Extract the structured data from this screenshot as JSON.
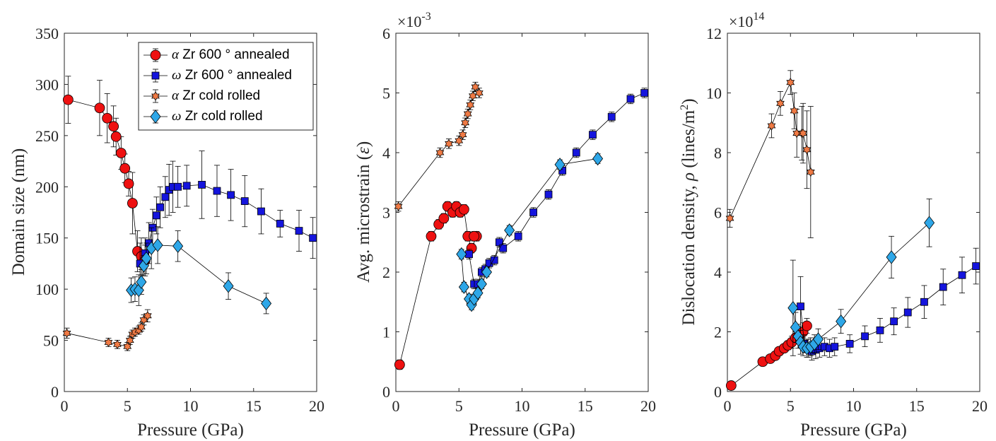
{
  "chart_data": [
    {
      "type": "scatter",
      "title": "",
      "xlabel": "Pressure (GPa)",
      "ylabel": "Domain size (nm)",
      "xlim": [
        0,
        20
      ],
      "ylim": [
        0,
        350
      ],
      "xticks": [
        0,
        5,
        10,
        15,
        20
      ],
      "yticks": [
        0,
        50,
        100,
        150,
        200,
        250,
        300,
        350
      ],
      "exponent": "",
      "legend_position": "top-right",
      "legend": [
        {
          "greek": "α",
          "text": " Zr 600 ° annealed"
        },
        {
          "greek": "ω",
          "text": " Zr 600 ° annealed"
        },
        {
          "greek": "α",
          "text": " Zr cold rolled"
        },
        {
          "greek": "ω",
          "text": " Zr cold rolled"
        }
      ],
      "series": [
        {
          "name": "α Zr 600 ° annealed",
          "marker": "circle",
          "color": "#ee1111",
          "x": [
            0.3,
            2.8,
            3.4,
            3.9,
            4.1,
            4.5,
            4.8,
            5.1,
            5.4,
            5.8,
            6.1,
            6.4
          ],
          "y": [
            285,
            277,
            267,
            259,
            249,
            233,
            218,
            203,
            184,
            137,
            132,
            128
          ],
          "err": [
            23,
            27,
            24,
            20,
            18,
            16,
            14,
            12,
            30,
            20,
            18,
            15
          ]
        },
        {
          "name": "ω Zr 600 ° annealed",
          "marker": "square",
          "color": "#1515dd",
          "x": [
            6.0,
            6.4,
            6.7,
            7.0,
            7.3,
            7.6,
            8.0,
            8.3,
            8.6,
            9.0,
            9.7,
            10.9,
            12.1,
            13.2,
            14.3,
            15.6,
            17.1,
            18.6,
            19.7
          ],
          "y": [
            125,
            135,
            145,
            160,
            172,
            180,
            190,
            197,
            200,
            200,
            201,
            202,
            196,
            192,
            186,
            176,
            164,
            157,
            150
          ],
          "err": [
            20,
            15,
            20,
            18,
            18,
            20,
            20,
            25,
            25,
            20,
            20,
            33,
            25,
            25,
            25,
            22,
            13,
            20,
            20
          ]
        },
        {
          "name": "α Zr cold rolled",
          "marker": "hexagram",
          "color": "#f07a44",
          "x": [
            0.2,
            3.5,
            4.2,
            5.0,
            5.2,
            5.4,
            5.6,
            5.9,
            6.1,
            6.3,
            6.6
          ],
          "y": [
            57,
            48,
            46,
            44,
            50,
            56,
            58,
            60,
            63,
            70,
            74
          ],
          "err": [
            5,
            4,
            4,
            4,
            4,
            4,
            4,
            4,
            4,
            5,
            6
          ]
        },
        {
          "name": "ω Zr cold rolled",
          "marker": "diamond",
          "color": "#2ea7e8",
          "x": [
            5.3,
            5.6,
            5.9,
            6.1,
            6.3,
            6.5,
            6.9,
            7.4,
            9.0,
            13.0,
            16.0
          ],
          "y": [
            99,
            100,
            99,
            107,
            123,
            130,
            140,
            143,
            142,
            103,
            86
          ],
          "err": [
            12,
            12,
            15,
            12,
            10,
            15,
            20,
            18,
            15,
            13,
            10
          ]
        }
      ]
    },
    {
      "type": "scatter",
      "title": "",
      "xlabel": "Pressure (GPa)",
      "ylabel": "Avg. microstrain (ε)",
      "ylabel_main": "Avg.  microstrain  (",
      "ylabel_sym": "ε",
      "ylabel_end": ")",
      "xlim": [
        0,
        20
      ],
      "ylim": [
        0,
        6
      ],
      "xticks": [
        0,
        5,
        10,
        15,
        20
      ],
      "yticks": [
        0,
        1,
        2,
        3,
        4,
        5,
        6
      ],
      "exponent_base": "×10",
      "exponent_power": "-3",
      "series": [
        {
          "name": "α Zr 600 ° annealed",
          "marker": "circle",
          "color": "#ee1111",
          "x": [
            0.3,
            2.8,
            3.4,
            3.8,
            4.1,
            4.5,
            4.8,
            5.1,
            5.4,
            5.7,
            6.0,
            6.4,
            6.2
          ],
          "y": [
            0.45,
            2.6,
            2.8,
            2.9,
            3.1,
            3.0,
            3.1,
            3.0,
            3.05,
            2.6,
            2.4,
            2.6,
            2.6
          ],
          "err": [
            0.08,
            0.08,
            0.08,
            0.08,
            0.08,
            0.08,
            0.08,
            0.08,
            0.08,
            0.08,
            0.08,
            0.08,
            0.08
          ]
        },
        {
          "name": "ω Zr 600 ° annealed",
          "marker": "square",
          "color": "#1515dd",
          "x": [
            5.8,
            6.2,
            6.5,
            6.8,
            7.1,
            7.4,
            7.8,
            8.2,
            8.5,
            9.7,
            10.9,
            12.1,
            13.2,
            14.3,
            15.6,
            17.1,
            18.6,
            19.7
          ],
          "y": [
            2.3,
            1.8,
            1.8,
            2.0,
            2.05,
            2.15,
            2.2,
            2.5,
            2.4,
            2.6,
            3.0,
            3.3,
            3.7,
            4.0,
            4.3,
            4.6,
            4.9,
            5.0
          ],
          "err": [
            0.08,
            0.08,
            0.08,
            0.08,
            0.08,
            0.08,
            0.08,
            0.08,
            0.08,
            0.08,
            0.08,
            0.08,
            0.08,
            0.08,
            0.08,
            0.08,
            0.08,
            0.08
          ]
        },
        {
          "name": "α Zr cold rolled",
          "marker": "hexagram",
          "color": "#f07a44",
          "x": [
            0.2,
            3.5,
            4.2,
            5.0,
            5.3,
            5.5,
            5.7,
            5.9,
            6.1,
            6.3,
            6.6
          ],
          "y": [
            3.1,
            4.0,
            4.15,
            4.2,
            4.3,
            4.5,
            4.65,
            4.8,
            4.95,
            5.1,
            5.0
          ],
          "err": [
            0.08,
            0.08,
            0.08,
            0.08,
            0.08,
            0.08,
            0.08,
            0.08,
            0.08,
            0.08,
            0.08
          ]
        },
        {
          "name": "ω Zr cold rolled",
          "marker": "diamond",
          "color": "#2ea7e8",
          "x": [
            5.2,
            5.4,
            5.8,
            6.0,
            6.2,
            6.5,
            6.8,
            7.2,
            9.0,
            13.0,
            16.0
          ],
          "y": [
            2.3,
            1.75,
            1.55,
            1.45,
            1.55,
            1.65,
            1.8,
            2.0,
            2.7,
            3.8,
            3.9
          ],
          "err": [
            0.08,
            0.08,
            0.08,
            0.08,
            0.08,
            0.08,
            0.08,
            0.08,
            0.08,
            0.08,
            0.08
          ]
        }
      ]
    },
    {
      "type": "scatter",
      "title": "",
      "xlabel": "Pressure (GPa)",
      "ylabel": "Dislocation density, ρ (lines/m²)",
      "ylabel_main": "Dislocation  density,  ",
      "ylabel_sym": "ρ",
      "ylabel_end": " (lines/m",
      "ylabel_sup": "2",
      "ylabel_close": ")",
      "xlim": [
        0,
        20
      ],
      "ylim": [
        0,
        12
      ],
      "xticks": [
        0,
        5,
        10,
        15,
        20
      ],
      "yticks": [
        0,
        2,
        4,
        6,
        8,
        10,
        12
      ],
      "exponent_base": "×10",
      "exponent_power": "14",
      "series": [
        {
          "name": "α Zr 600 ° annealed",
          "marker": "circle",
          "color": "#ee1111",
          "x": [
            0.3,
            2.8,
            3.4,
            3.8,
            4.1,
            4.5,
            4.8,
            5.1,
            5.4,
            5.7,
            6.0,
            6.3
          ],
          "y": [
            0.2,
            1.0,
            1.1,
            1.2,
            1.35,
            1.45,
            1.55,
            1.65,
            1.8,
            1.9,
            2.0,
            2.2
          ],
          "err": [
            0.05,
            0.1,
            0.1,
            0.1,
            0.1,
            0.1,
            0.15,
            0.2,
            0.2,
            0.25,
            0.3,
            0.25
          ]
        },
        {
          "name": "ω Zr 600 ° annealed",
          "marker": "square",
          "color": "#1515dd",
          "x": [
            5.8,
            6.1,
            6.4,
            6.7,
            7.0,
            7.3,
            7.7,
            8.1,
            8.5,
            9.7,
            10.9,
            12.1,
            13.2,
            14.3,
            15.6,
            17.1,
            18.6,
            19.7
          ],
          "y": [
            2.85,
            1.6,
            1.45,
            1.35,
            1.4,
            1.45,
            1.5,
            1.45,
            1.5,
            1.6,
            1.85,
            2.05,
            2.35,
            2.65,
            3.0,
            3.5,
            3.9,
            4.2
          ],
          "err": [
            1.0,
            0.3,
            0.3,
            0.3,
            0.3,
            0.3,
            0.3,
            0.3,
            0.3,
            0.3,
            0.35,
            0.4,
            0.45,
            0.5,
            0.55,
            0.6,
            0.6,
            0.6
          ]
        },
        {
          "name": "α Zr cold rolled",
          "marker": "hexagram",
          "color": "#f07a44",
          "x": [
            0.2,
            3.5,
            4.2,
            5.0,
            5.3,
            5.5,
            5.9,
            6.0,
            6.3,
            6.6
          ],
          "y": [
            5.8,
            8.9,
            9.65,
            10.35,
            9.4,
            8.65,
            8.65,
            8.65,
            8.1,
            7.35
          ],
          "err": [
            0.3,
            0.4,
            0.4,
            0.4,
            0.6,
            0.8,
            0.9,
            1.0,
            1.3,
            2.2
          ]
        },
        {
          "name": "ω Zr cold rolled",
          "marker": "diamond",
          "color": "#2ea7e8",
          "x": [
            5.2,
            5.4,
            5.6,
            5.8,
            6.0,
            6.3,
            6.6,
            6.9,
            7.2,
            9.0,
            13.0,
            16.0
          ],
          "y": [
            2.8,
            2.15,
            1.85,
            1.65,
            1.5,
            1.45,
            1.5,
            1.6,
            1.75,
            2.35,
            4.5,
            5.65
          ],
          "err": [
            1.6,
            0.5,
            0.4,
            0.4,
            0.3,
            0.3,
            0.3,
            0.3,
            0.35,
            0.4,
            0.7,
            0.8
          ]
        }
      ]
    }
  ]
}
